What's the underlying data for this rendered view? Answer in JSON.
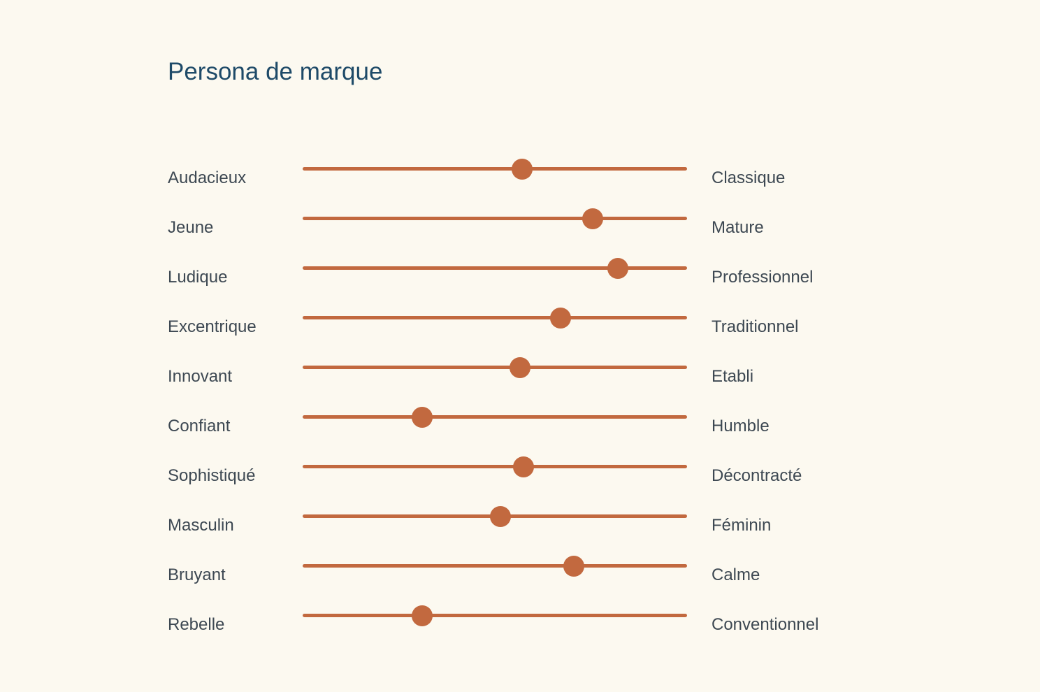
{
  "title": "Persona de marque",
  "colors": {
    "background": "#FCF9F0",
    "accent": "#C2693F",
    "title_text": "#1E4A68",
    "label_text": "#3D4852"
  },
  "chart_data": {
    "type": "slider-scale",
    "title": "Persona de marque",
    "scale_range": [
      0,
      100
    ],
    "rows": [
      {
        "left": "Audacieux",
        "right": "Classique",
        "value": 57
      },
      {
        "left": "Jeune",
        "right": "Mature",
        "value": 75.5
      },
      {
        "left": "Ludique",
        "right": "Professionnel",
        "value": 82
      },
      {
        "left": "Excentrique",
        "right": "Traditionnel",
        "value": 67
      },
      {
        "left": "Innovant",
        "right": "Etabli",
        "value": 56.5
      },
      {
        "left": "Confiant",
        "right": "Humble",
        "value": 31
      },
      {
        "left": "Sophistiqué",
        "right": "Décontracté",
        "value": 57.5
      },
      {
        "left": "Masculin",
        "right": "Féminin",
        "value": 51.5
      },
      {
        "left": "Bruyant",
        "right": "Calme",
        "value": 70.5
      },
      {
        "left": "Rebelle",
        "right": "Conventionnel",
        "value": 31
      }
    ]
  }
}
